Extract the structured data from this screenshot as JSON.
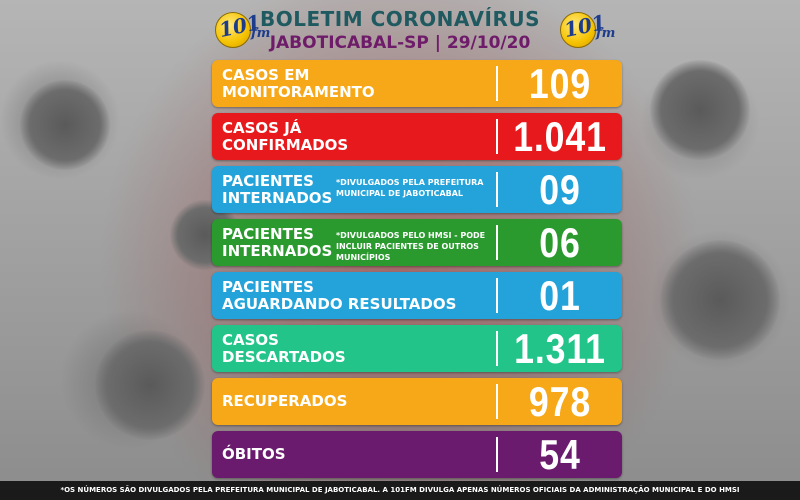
{
  "header": {
    "title": "BOLETIM CORONAVÍRUS",
    "subtitle": "JABOTICABAL-SP | 29/10/20",
    "logo": {
      "number": "101",
      "suffix": "fm"
    }
  },
  "rows": [
    {
      "label_lines": [
        "CASOS EM",
        "MONITORAMENTO"
      ],
      "note": "",
      "value": "109",
      "color": "#f6a819"
    },
    {
      "label_lines": [
        "CASOS JÁ",
        "CONFIRMADOS"
      ],
      "note": "",
      "value": "1.041",
      "color": "#e8191c"
    },
    {
      "label_lines": [
        "PACIENTES",
        "INTERNADOS"
      ],
      "note": "*DIVULGADOS PELA PREFEITURA MUNICIPAL DE JABOTICABAL",
      "value": "09",
      "color": "#23a3d9"
    },
    {
      "label_lines": [
        "PACIENTES",
        "INTERNADOS"
      ],
      "note": "*DIVULGADOS PELO HMSI - PODE INCLUIR PACIENTES DE OUTROS MUNICÍPIOS",
      "value": "06",
      "color": "#2a9a2e"
    },
    {
      "label_lines": [
        "PACIENTES",
        "AGUARDANDO RESULTADOS"
      ],
      "note": "",
      "value": "01",
      "color": "#23a3d9"
    },
    {
      "label_lines": [
        "CASOS",
        "DESCARTADOS"
      ],
      "note": "",
      "value": "1.311",
      "color": "#23c48a"
    },
    {
      "label_lines": [
        "RECUPERADOS"
      ],
      "note": "",
      "value": "978",
      "color": "#f6a819"
    },
    {
      "label_lines": [
        "ÓBITOS"
      ],
      "note": "",
      "value": "54",
      "color": "#6a1b6d"
    }
  ],
  "footer": "*OS NÚMEROS SÃO DIVULGADOS PELA PREFEITURA MUNICIPAL DE JABOTICABAL. A 101FM DIVULGA APENAS NÚMEROS OFICIAIS DA ADMINISTRAÇÃO MUNICIPAL E DO HMSI"
}
